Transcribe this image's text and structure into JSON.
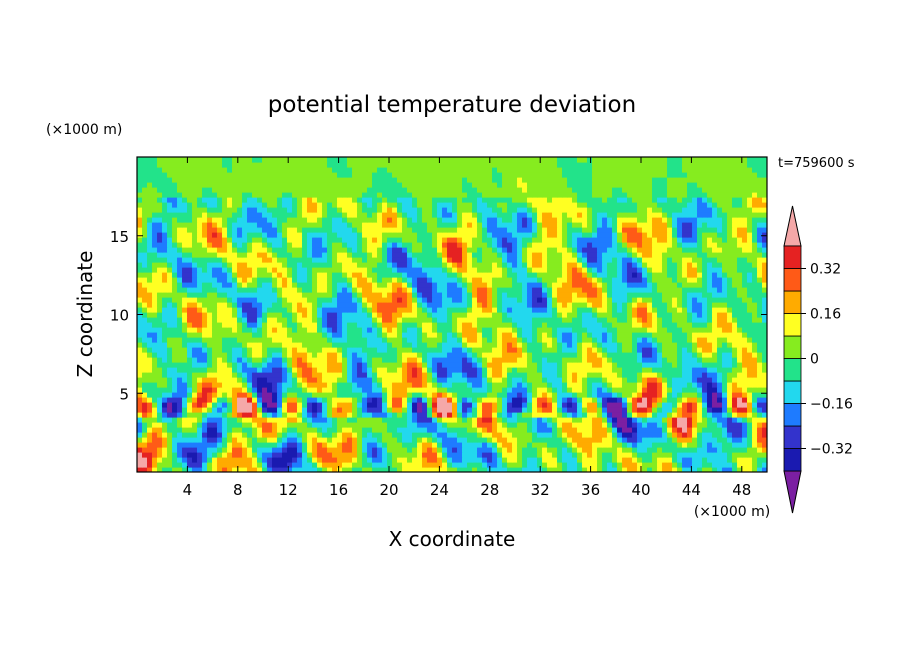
{
  "chart_data": {
    "type": "heatmap",
    "title": "potential temperature deviation",
    "xlabel": "X coordinate",
    "ylabel": "Z coordinate",
    "x_unit": "(×1000 m)",
    "y_unit": "(×1000 m)",
    "time_label": "t=759600 s",
    "xlim": [
      0,
      50
    ],
    "ylim": [
      0,
      20
    ],
    "x_ticks": [
      4,
      8,
      12,
      16,
      20,
      24,
      28,
      32,
      36,
      40,
      44,
      48
    ],
    "y_ticks": [
      5,
      10,
      15
    ],
    "colorbar": {
      "levels": [
        -0.4,
        -0.32,
        -0.24,
        -0.16,
        -0.08,
        0,
        0.08,
        0.16,
        0.24,
        0.32,
        0.4
      ],
      "tick_labels": [
        "0.32",
        "0.16",
        "0",
        "−0.16",
        "−0.32"
      ],
      "tick_values": [
        0.32,
        0.16,
        0,
        -0.16,
        -0.32
      ],
      "colors": [
        "#7b1fa2",
        "#1a1ab0",
        "#3333cc",
        "#1e7bff",
        "#22d8ee",
        "#22e38a",
        "#86ec1f",
        "#ffff22",
        "#ffab00",
        "#ff5a17",
        "#e52222",
        "#f5a8a8"
      ],
      "extend": "both"
    }
  }
}
